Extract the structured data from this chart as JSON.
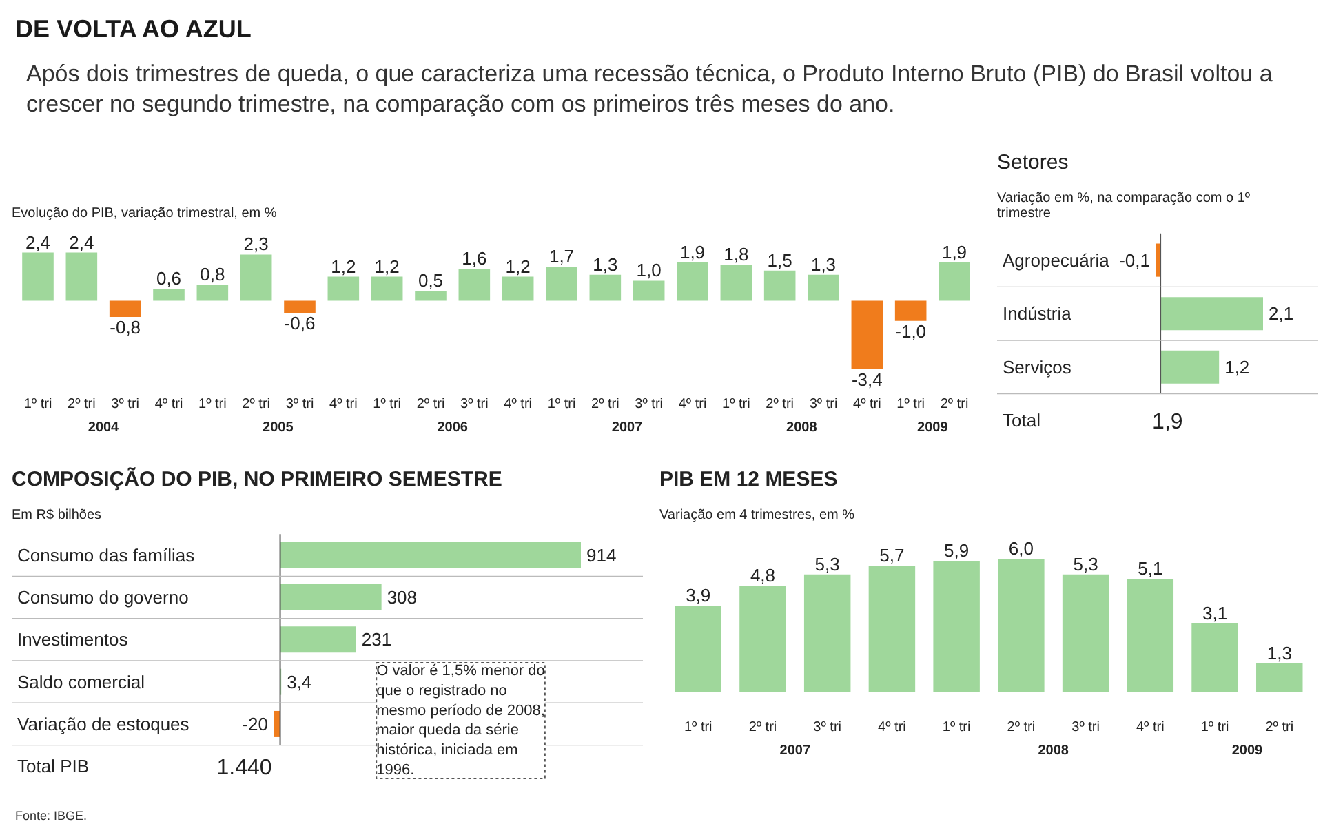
{
  "chart_data": [
    {
      "type": "bar",
      "title": "DE VOLTA AO AZUL",
      "subtitle": "Após dois trimestres de queda, o que caracteriza uma recessão técnica, o Produto Interno Bruto (PIB) do Brasil voltou a crescer no segundo trimestre, na comparação com os primeiros três meses do ano.",
      "ylabel": "Evolução do PIB, variação trimestral, em %",
      "categories": [
        "1º tri",
        "2º tri",
        "3º tri",
        "4º tri",
        "1º tri",
        "2º tri",
        "3º tri",
        "4º tri",
        "1º tri",
        "2º tri",
        "3º tri",
        "4º tri",
        "1º tri",
        "2º tri",
        "3º tri",
        "4º tri",
        "1º tri",
        "2º tri",
        "3º tri",
        "4º tri",
        "1º tri",
        "2º tri"
      ],
      "values": [
        2.4,
        2.4,
        -0.8,
        0.6,
        0.8,
        2.3,
        -0.6,
        1.2,
        1.2,
        0.5,
        1.6,
        1.2,
        1.7,
        1.3,
        1.0,
        1.9,
        1.8,
        1.5,
        1.3,
        -3.4,
        -1.0,
        1.9
      ],
      "value_labels": [
        "2,4",
        "2,4",
        "-0,8",
        "0,6",
        "0,8",
        "2,3",
        "-0,6",
        "1,2",
        "1,2",
        "0,5",
        "1,6",
        "1,2",
        "1,7",
        "1,3",
        "1,0",
        "1,9",
        "1,8",
        "1,5",
        "1,3",
        "-3,4",
        "-1,0",
        "1,9"
      ],
      "colors": [
        "#9fd79b",
        "#9fd79b",
        "#f07c1c",
        "#9fd79b",
        "#9fd79b",
        "#9fd79b",
        "#f07c1c",
        "#9fd79b",
        "#9fd79b",
        "#9fd79b",
        "#9fd79b",
        "#9fd79b",
        "#9fd79b",
        "#9fd79b",
        "#9fd79b",
        "#9fd79b",
        "#9fd79b",
        "#9fd79b",
        "#9fd79b",
        "#f07c1c",
        "#f07c1c",
        "#9fd79b"
      ],
      "annotations": [
        "2004",
        "2005",
        "2006",
        "2007",
        "2008",
        "2009"
      ]
    },
    {
      "type": "bar",
      "orientation": "horizontal",
      "title": "Setores",
      "subtitle": "Variação em %, na comparação com o 1º trimestre",
      "categories": [
        "Agropecuária",
        "Indústria",
        "Serviços"
      ],
      "values": [
        -0.1,
        2.1,
        1.2
      ],
      "value_labels": [
        "-0,1",
        "2,1",
        "1,2"
      ],
      "colors": [
        "#f07c1c",
        "#9fd79b",
        "#9fd79b"
      ],
      "annotations": [
        "Total",
        "1,9"
      ]
    },
    {
      "type": "bar",
      "orientation": "horizontal",
      "title": "COMPOSIÇÃO DO PIB, NO PRIMEIRO SEMESTRE",
      "subtitle": "Em R$ bilhões",
      "categories": [
        "Consumo das famílias",
        "Consumo do governo",
        "Investimentos",
        "Saldo comercial",
        "Variação de estoques"
      ],
      "values": [
        914,
        308,
        231,
        3.4,
        -20
      ],
      "value_labels": [
        "914",
        "308",
        "231",
        "3,4",
        "-20"
      ],
      "colors": [
        "#9fd79b",
        "#9fd79b",
        "#9fd79b",
        "#9fd79b",
        "#f07c1c"
      ],
      "annotations": [
        "Total PIB",
        "1.440",
        "O valor é 1,5% menor do que o registrado no mesmo período de 2008, maior queda da série histórica, iniciada em 1996.",
        "Fonte: IBGE."
      ]
    },
    {
      "type": "bar",
      "title": "PIB EM 12 MESES",
      "subtitle": "Variação em 4 trimestres, em %",
      "categories": [
        "1º tri",
        "2º tri",
        "3º tri",
        "4º tri",
        "1º tri",
        "2º tri",
        "3º tri",
        "4º tri",
        "1º tri",
        "2º tri"
      ],
      "values": [
        3.9,
        4.8,
        5.3,
        5.7,
        5.9,
        6.0,
        5.3,
        5.1,
        3.1,
        1.3
      ],
      "value_labels": [
        "3,9",
        "4,8",
        "5,3",
        "5,7",
        "5,9",
        "6,0",
        "5,3",
        "5,1",
        "3,1",
        "1,3"
      ],
      "color": "#9fd79b",
      "annotations": [
        "2007",
        "2008",
        "2009"
      ]
    }
  ]
}
